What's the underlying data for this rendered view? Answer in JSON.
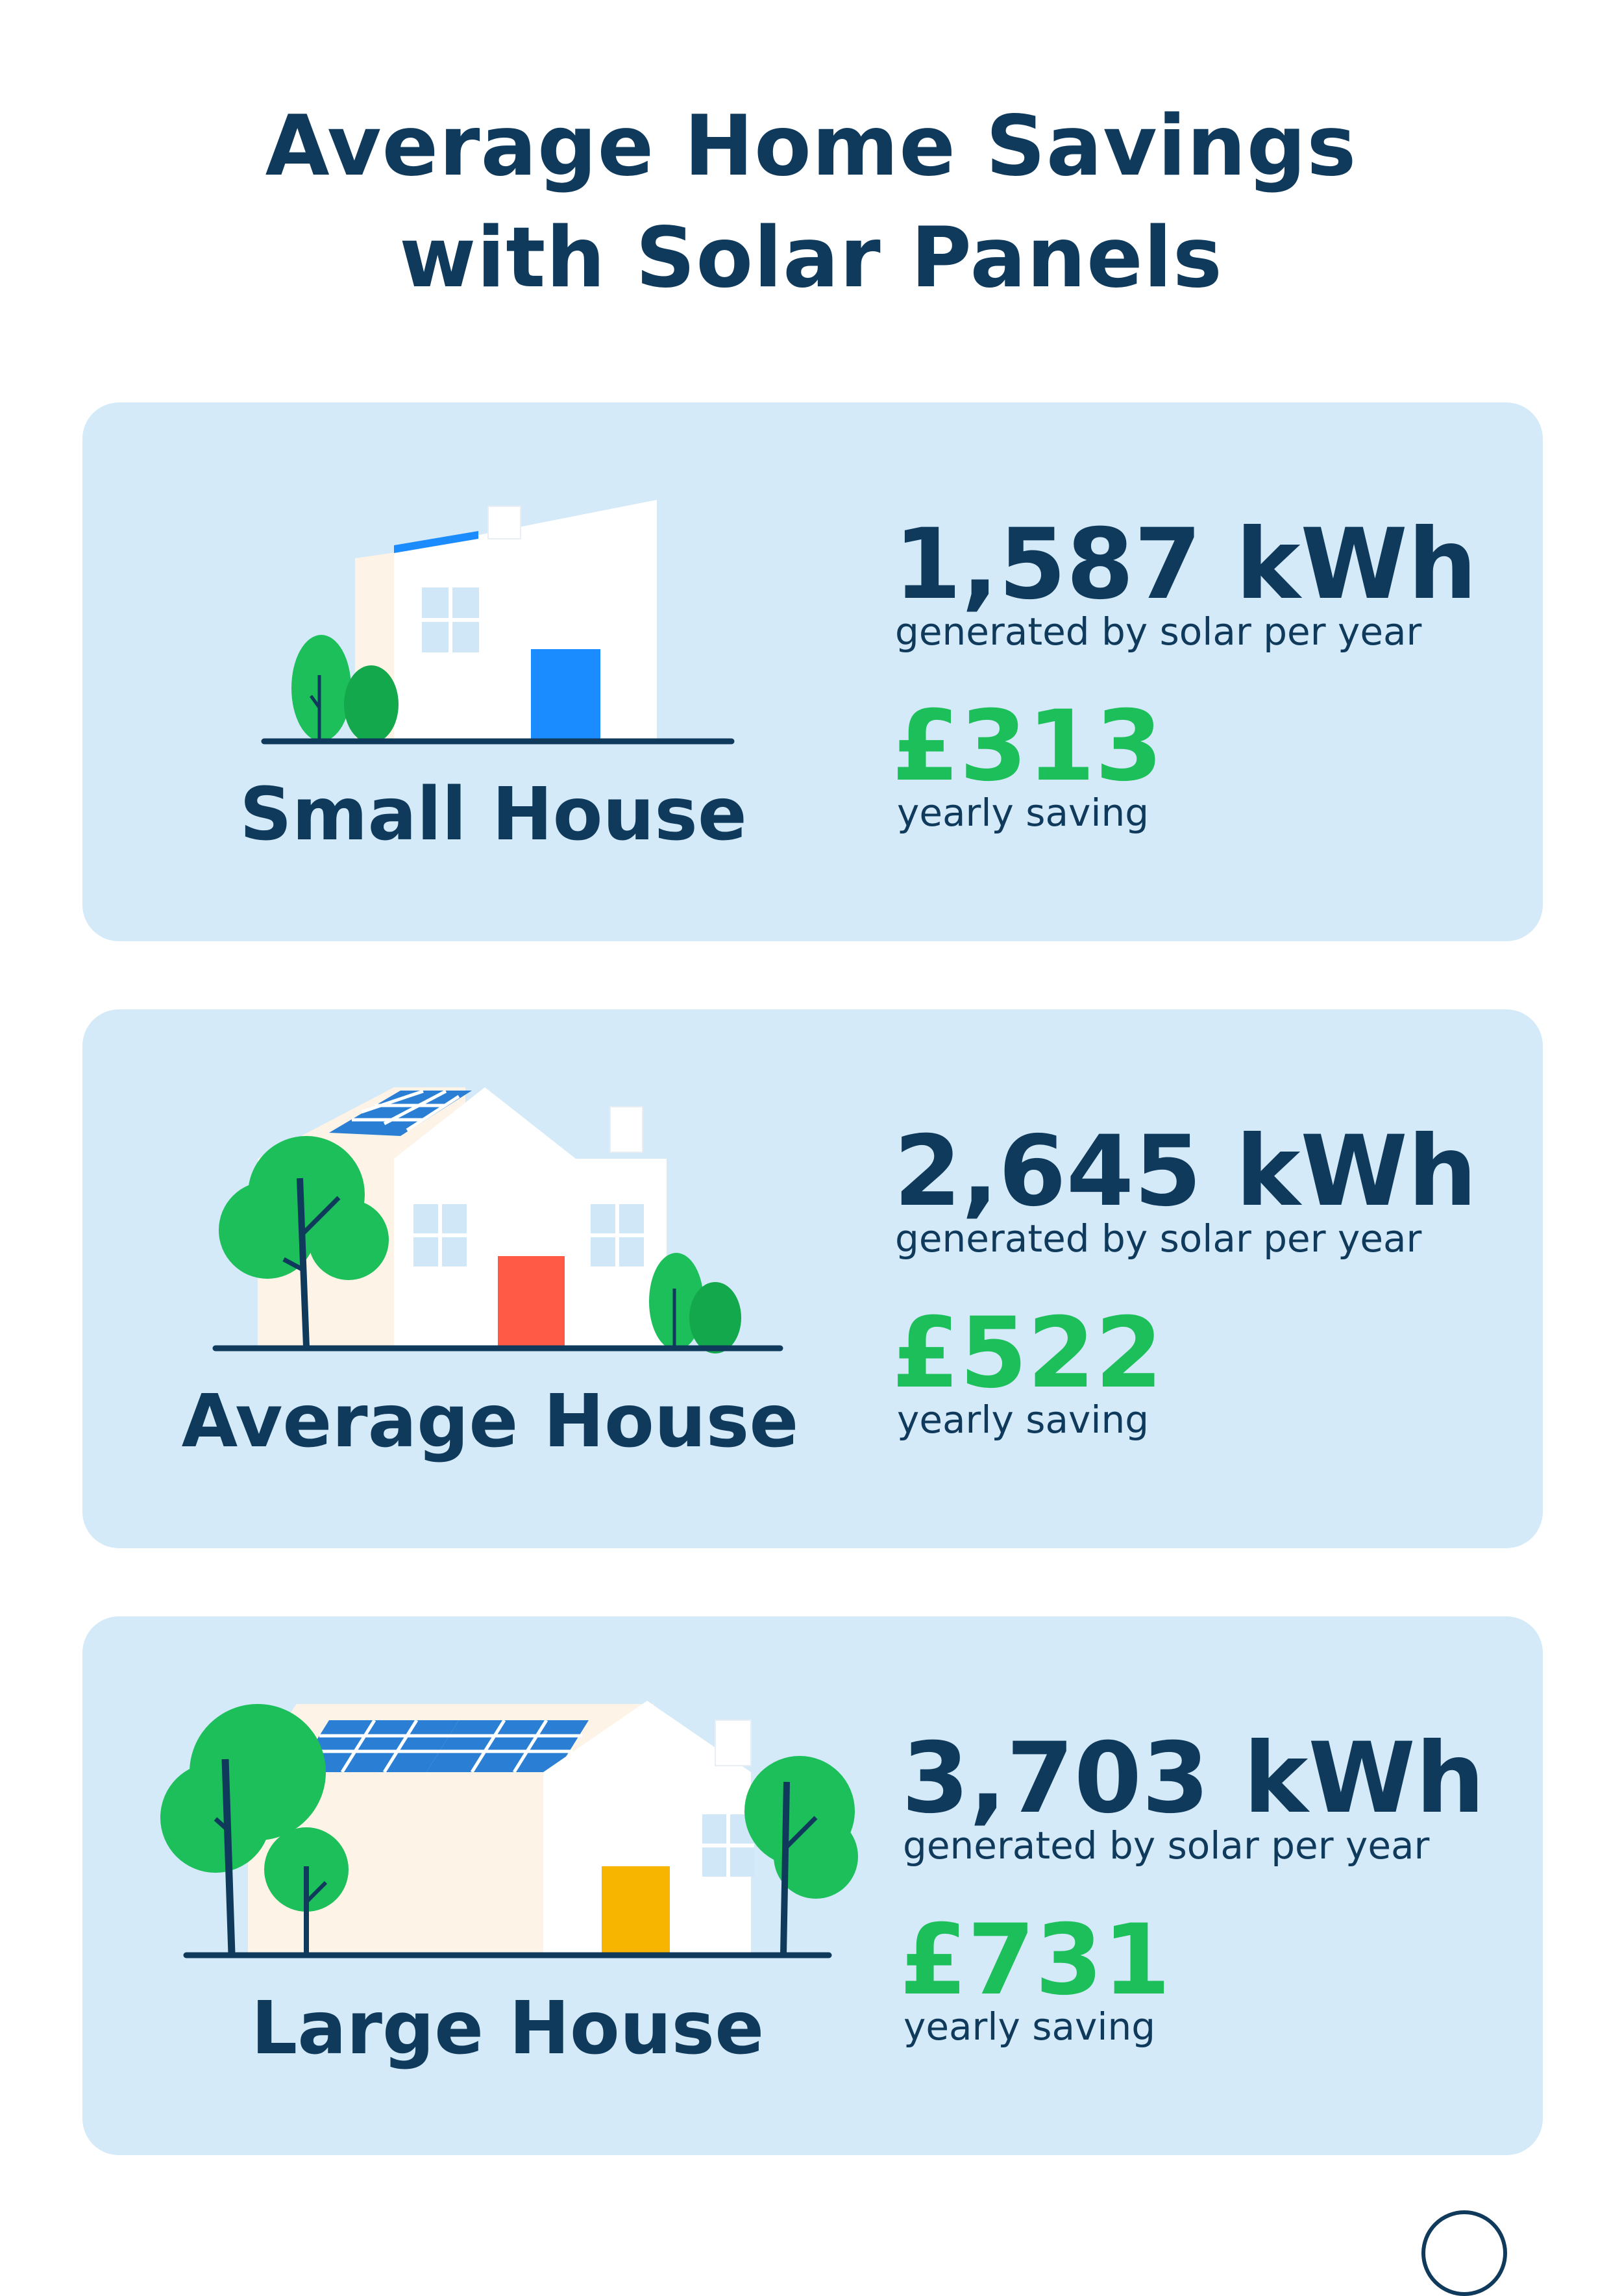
{
  "title": {
    "line1": "Average Home Savings",
    "line2": "with Solar Panels"
  },
  "cards": [
    {
      "label": "Small House",
      "kwh": "1,587 kWh",
      "kwh_caption": "generated by solar per year",
      "saving": "£313",
      "saving_caption": "yearly saving",
      "door_color": "#1a8cff"
    },
    {
      "label": "Average House",
      "kwh": "2,645 kWh",
      "kwh_caption": "generated by solar per year",
      "saving": "£522",
      "saving_caption": "yearly saving",
      "door_color": "#ff5a45"
    },
    {
      "label": "Large House",
      "kwh": "3,703 kWh",
      "kwh_caption": "generated by solar per year",
      "saving": "£731",
      "saving_caption": "yearly saving",
      "door_color": "#f7b500"
    }
  ],
  "colors": {
    "navy": "#0f3a5c",
    "green": "#1cbf5a",
    "card_bg": "#d4eaf8",
    "tree": "#1cbf5a",
    "house_side": "#fdf3e6",
    "window": "#cfe7f7",
    "panel": "#2a7fd4"
  }
}
